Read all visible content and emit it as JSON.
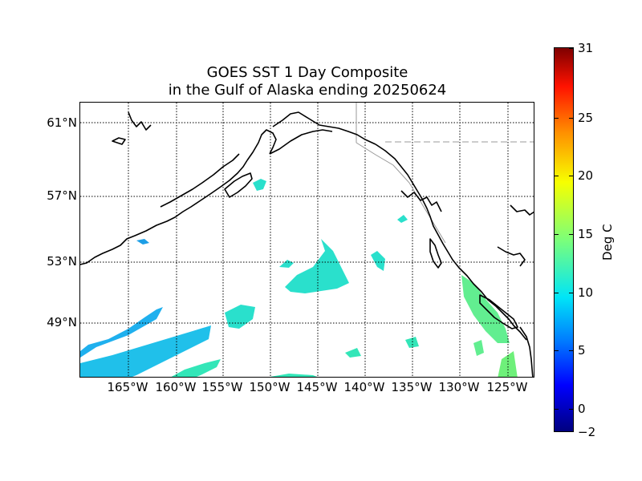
{
  "title": {
    "line1": "GOES SST 1 Day Composite",
    "line2": "in the Gulf of Alaska ending 20250624"
  },
  "lat_labels": [
    "61°N",
    "57°N",
    "53°N",
    "49°N"
  ],
  "lon_labels": [
    "165°W",
    "160°W",
    "155°W",
    "150°W",
    "145°W",
    "140°W",
    "135°W",
    "130°W",
    "125°W"
  ],
  "colorbar": {
    "label": "Deg C",
    "ticks": [
      "31",
      "25",
      "20",
      "15",
      "10",
      "5",
      "0",
      "−2"
    ],
    "min": -2,
    "max": 31,
    "colormap": "jet"
  },
  "colors": {
    "coastline": "#000000",
    "gridline": "#000000",
    "border": "#999999",
    "sst_cool": "#19b4f0",
    "sst_mid": "#2de6c8",
    "sst_warm": "#6cf08a"
  }
}
